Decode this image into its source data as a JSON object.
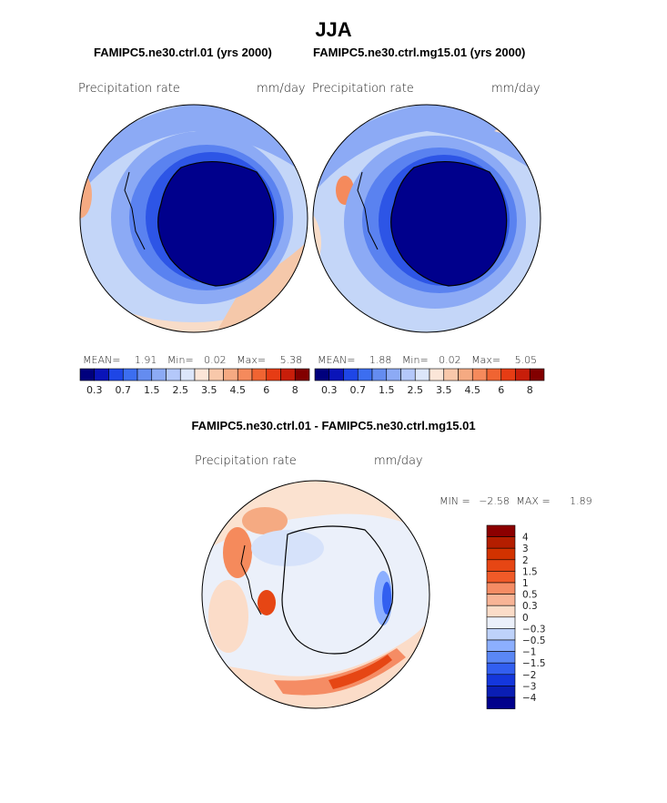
{
  "figure": {
    "season": "JJA",
    "left_title": "FAMIPC5.ne30.ctrl.01 (yrs 2000)",
    "right_title": "FAMIPC5.ne30.ctrl.mg15.01 (yrs 2000)",
    "diff_title": "FAMIPC5.ne30.ctrl.01 - FAMIPC5.ne30.ctrl.mg15.01"
  },
  "panels": {
    "left": {
      "variable": "Precipitation rate",
      "units": "mm/day",
      "stats": {
        "mean_label": "MEAN=",
        "mean": "1.91",
        "min_label": "Min=",
        "min": "0.02",
        "max_label": "Max=",
        "max": "5.38"
      }
    },
    "right": {
      "variable": "Precipitation rate",
      "units": "mm/day",
      "stats": {
        "mean_label": "MEAN=",
        "mean": "1.88",
        "min_label": "Min=",
        "min": "0.02",
        "max_label": "Max=",
        "max": "5.05"
      }
    },
    "diff": {
      "variable": "Precipitation rate",
      "units": "mm/day",
      "stats": {
        "min_label": "MIN =",
        "min": "−2.58",
        "max_label": "MAX =",
        "max": "1.89"
      }
    }
  },
  "colorbars": {
    "abs": {
      "tick_labels": [
        "0.3",
        "0.7",
        "1.5",
        "2.5",
        "3.5",
        "4.5",
        "6",
        "8"
      ],
      "colors": [
        "#00007d",
        "#0a14b9",
        "#1e46e6",
        "#3c6ef0",
        "#648cf0",
        "#8caaf5",
        "#b4c8fa",
        "#dce6fa",
        "#fbe6d8",
        "#f8c8aa",
        "#f5aa82",
        "#f58a5c",
        "#f06432",
        "#e63c14",
        "#c81e0a",
        "#820000"
      ]
    },
    "diff": {
      "tick_labels": [
        "4",
        "3",
        "2",
        "1.5",
        "1",
        "0.5",
        "0.3",
        "0",
        "−0.3",
        "−0.5",
        "−1",
        "−1.5",
        "−2",
        "−3",
        "−4"
      ],
      "colors": [
        "#8c0000",
        "#b41e00",
        "#d23200",
        "#e64614",
        "#f05a28",
        "#f58c64",
        "#f8b496",
        "#fbdcc8",
        "#ebf0fa",
        "#bed2fa",
        "#8cafff",
        "#5a87f5",
        "#325ff0",
        "#1437dc",
        "#0a1eb4",
        "#00008c"
      ]
    }
  }
}
